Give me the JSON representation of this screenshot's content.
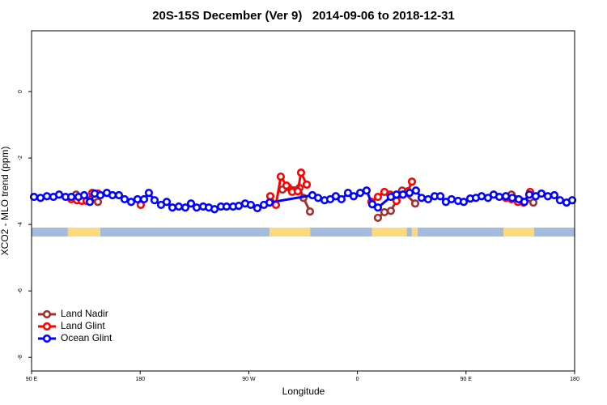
{
  "chart_data": {
    "type": "line",
    "title": "20S-15S December (Ver 9)   2014-09-06 to 2018-12-31",
    "xlabel": "Longitude",
    "ylabel": "XCO2 - MLO trend (ppm)",
    "xlim": [
      90,
      540
    ],
    "ylim": [
      -8.41,
      1.83
    ],
    "xticks": [
      {
        "value": 90,
        "label": "90 E"
      },
      180,
      {
        "value": 270,
        "label": "90 W"
      },
      {
        "value": 360,
        "label": "0"
      },
      {
        "value": 450,
        "label": "90 E"
      },
      {
        "value": 540,
        "label": "180"
      }
    ],
    "yticks": [
      0,
      -2,
      -4,
      -6,
      -8
    ],
    "legend": "bottom-left",
    "ocean_color": "#a3bbdf",
    "land_color": "#fcd97c",
    "land_ranges": [
      [
        120,
        147
      ],
      [
        287,
        321
      ],
      [
        372,
        401
      ],
      [
        405,
        410
      ],
      [
        481,
        506.5
      ]
    ],
    "series": [
      {
        "name": "Land Nadir",
        "color": "#a03030",
        "x": [
          126.9,
          145.0,
          null,
          297.9,
          302.6,
          312.0,
          315.3,
          320.7,
          null,
          377.0,
          382.4,
          387.7,
          397.1,
          407.9,
          null,
          487.7,
          505.8
        ],
        "values": [
          -3.1,
          -3.32,
          null,
          -2.95,
          -2.88,
          -2.9,
          -3.2,
          -3.61,
          null,
          -3.8,
          -3.63,
          -3.59,
          -2.98,
          -3.37,
          null,
          -3.1,
          -3.34
        ]
      },
      {
        "name": "Land Glint",
        "color": "#ff0000",
        "x": [
          122.9,
          127.6,
          131.6,
          135.6,
          140.3,
          145.0,
          null,
          180.5,
          null,
          287.8,
          292.5,
          296.5,
          301.2,
          305.9,
          310.6,
          313.3,
          318.0,
          null,
          371.6,
          377.0,
          382.4,
          387.1,
          392.4,
          397.8,
          401.8,
          405.2,
          null,
          483.0,
          487.7,
          493.0,
          497.7,
          503.1
        ],
        "values": [
          -3.24,
          -3.27,
          -3.29,
          -3.29,
          -3.05,
          -3.07,
          null,
          -3.41,
          null,
          -3.15,
          -3.41,
          -2.56,
          -2.83,
          -3.02,
          -3.0,
          -2.44,
          -2.8,
          null,
          -3.32,
          -3.17,
          -3.02,
          -3.1,
          -3.29,
          -3.1,
          -3.0,
          -2.71,
          null,
          -3.2,
          -3.24,
          -3.32,
          -3.34,
          -3.02
        ]
      },
      {
        "name": "Ocean Glint",
        "color": "#0000ff",
        "x": [
          92.0,
          97.4,
          102.7,
          108.1,
          112.8,
          118.2,
          122.9,
          128.9,
          133.6,
          138.3,
          142.3,
          147.0,
          152.4,
          157.1,
          162.4,
          167.1,
          172.5,
          177.8,
          183.2,
          187.2,
          191.9,
          197.3,
          202.0,
          206.7,
          212.0,
          217.4,
          222.1,
          226.8,
          232.2,
          236.9,
          241.6,
          246.9,
          251.6,
          257.0,
          261.7,
          267.0,
          271.7,
          277.1,
          282.5,
          287.2,
          322.7,
          327.4,
          332.8,
          337.5,
          342.1,
          346.8,
          352.2,
          356.9,
          362.3,
          367.6,
          372.3,
          377.0,
          387.7,
          392.4,
          397.8,
          403.2,
          408.5,
          413.2,
          418.6,
          424.0,
          428.7,
          433.3,
          438.0,
          443.4,
          448.1,
          453.5,
          458.2,
          462.9,
          468.2,
          472.9,
          477.6,
          483.0,
          488.3,
          493.7,
          498.4,
          502.4,
          507.8,
          512.5,
          517.8,
          523.2,
          527.9,
          533.3,
          538.0
        ],
        "values": [
          -3.17,
          -3.2,
          -3.15,
          -3.17,
          -3.1,
          -3.17,
          -3.17,
          -3.17,
          -3.12,
          -3.32,
          -3.07,
          -3.12,
          -3.05,
          -3.12,
          -3.12,
          -3.24,
          -3.32,
          -3.24,
          -3.24,
          -3.05,
          -3.27,
          -3.41,
          -3.32,
          -3.49,
          -3.46,
          -3.49,
          -3.37,
          -3.49,
          -3.46,
          -3.49,
          -3.54,
          -3.46,
          -3.46,
          -3.46,
          -3.44,
          -3.37,
          -3.41,
          -3.51,
          -3.41,
          -3.34,
          -3.12,
          -3.2,
          -3.27,
          -3.24,
          -3.15,
          -3.24,
          -3.05,
          -3.15,
          -3.05,
          -2.98,
          -3.39,
          -3.49,
          -3.17,
          -3.1,
          -3.1,
          -3.05,
          -2.98,
          -3.2,
          -3.24,
          -3.15,
          -3.15,
          -3.32,
          -3.24,
          -3.29,
          -3.32,
          -3.22,
          -3.2,
          -3.15,
          -3.2,
          -3.1,
          -3.17,
          -3.15,
          -3.2,
          -3.24,
          -3.32,
          -3.1,
          -3.15,
          -3.07,
          -3.15,
          -3.12,
          -3.27,
          -3.34,
          -3.27
        ]
      }
    ]
  }
}
